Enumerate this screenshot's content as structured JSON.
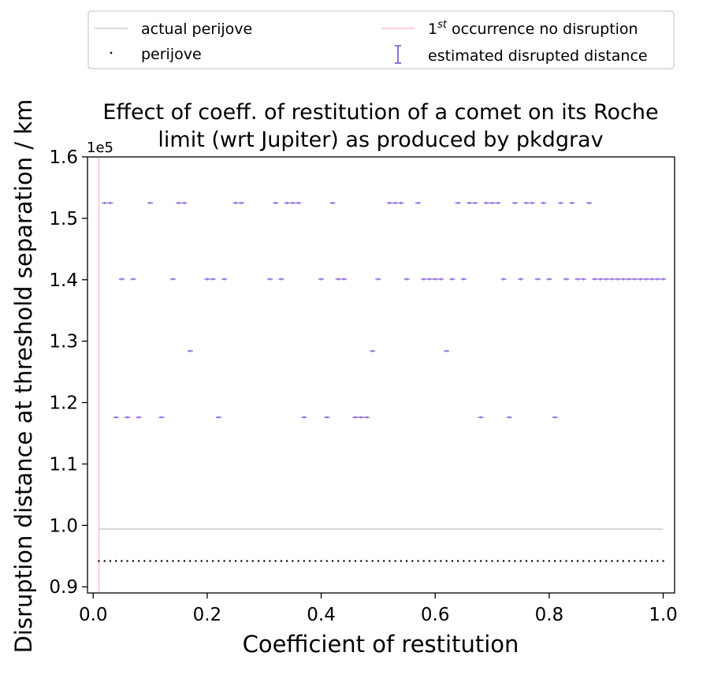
{
  "chart_data": {
    "type": "scatter",
    "title_lines": [
      "Effect of coeff. of restitution of a comet on its Roche",
      "limit (wrt Jupiter) as produced by pkdgrav"
    ],
    "xlabel": "Coefficient of restitution",
    "ylabel": "Disruption distance at threshold separation / km",
    "y_multiplier": "1e5",
    "xlim": [
      -0.01,
      1.02
    ],
    "ylim": [
      0.89,
      1.6
    ],
    "x_ticks": [
      0.0,
      0.2,
      0.4,
      0.6,
      0.8,
      1.0
    ],
    "x_tick_labels": [
      "0.0",
      "0.2",
      "0.4",
      "0.6",
      "0.8",
      "1.0"
    ],
    "y_ticks": [
      0.9,
      1.0,
      1.1,
      1.2,
      1.3,
      1.4,
      1.5,
      1.6
    ],
    "y_tick_labels": [
      "0.9",
      "1.0",
      "1.1",
      "1.2",
      "1.3",
      "1.4",
      "1.5",
      "1.6"
    ],
    "grid": false,
    "legend": {
      "placement": "top, outside plot",
      "entries": [
        {
          "label": "actual perijove",
          "marker": "line",
          "color": "#cccccc"
        },
        {
          "label": "perijove",
          "marker": "point",
          "color": "#000000"
        },
        {
          "label_base": "1",
          "label_sup": "st",
          "label_rest": " occurrence no disruption",
          "marker": "line",
          "color": "#ffc0cb"
        },
        {
          "label": "estimated disrupted distance",
          "marker": "errorbar",
          "color": "#9370db"
        }
      ]
    },
    "colors": {
      "actual_perijove": "#cccccc",
      "perijove": "#000000",
      "first_no_disruption": "#ffc0cb",
      "estimated": "#9370db"
    },
    "actual_perijove": {
      "y": 0.994,
      "x": [
        0.01,
        1.0
      ]
    },
    "perijove": {
      "y": 0.942,
      "x_start": 0.01,
      "x_end": 1.0,
      "x_step": 0.01
    },
    "first_no_disruption": {
      "x": 0.01
    },
    "estimated_disrupted_distance": {
      "levels": [
        {
          "y": 1.525,
          "x": [
            0.02,
            0.03,
            0.1,
            0.15,
            0.16,
            0.25,
            0.26,
            0.32,
            0.34,
            0.35,
            0.36,
            0.42,
            0.52,
            0.53,
            0.54,
            0.57,
            0.64,
            0.66,
            0.67,
            0.69,
            0.7,
            0.71,
            0.74,
            0.76,
            0.77,
            0.79,
            0.82,
            0.84,
            0.87
          ]
        },
        {
          "y": 1.401,
          "x": [
            0.05,
            0.07,
            0.14,
            0.2,
            0.21,
            0.23,
            0.31,
            0.33,
            0.4,
            0.43,
            0.44,
            0.5,
            0.55,
            0.58,
            0.59,
            0.6,
            0.61,
            0.63,
            0.65,
            0.72,
            0.75,
            0.78,
            0.8,
            0.83,
            0.85,
            0.86,
            0.88,
            0.89,
            0.9,
            0.91,
            0.92,
            0.93,
            0.94,
            0.95,
            0.96,
            0.97,
            0.98,
            0.99,
            1.0
          ]
        },
        {
          "y": 1.284,
          "x": [
            0.17,
            0.49,
            0.62
          ]
        },
        {
          "y": 1.176,
          "x": [
            0.04,
            0.06,
            0.08,
            0.12,
            0.22,
            0.37,
            0.41,
            0.46,
            0.47,
            0.48,
            0.68,
            0.73,
            0.81
          ]
        }
      ],
      "error": 0.002
    }
  }
}
